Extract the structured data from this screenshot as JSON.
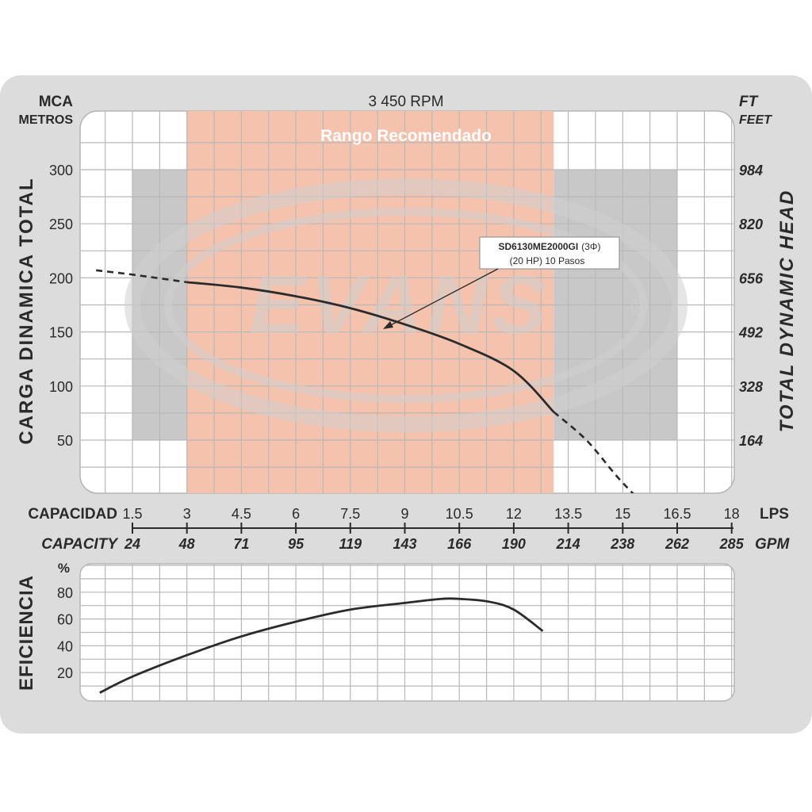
{
  "header": {
    "unit_left_1": "MCA",
    "unit_left_2": "METROS",
    "rpm": "3 450 RPM",
    "unit_right_1": "FT",
    "unit_right_2": "FEET",
    "range_label": "Rango Recomendado"
  },
  "axis_titles": {
    "left": "CARGA DINAMICA TOTAL",
    "right": "TOTAL DYNAMIC HEAD",
    "capacity_es": "CAPACIDAD",
    "capacity_en": "CAPACITY",
    "lps": "LPS",
    "gpm": "GPM",
    "efficiency": "EFICIENCIA",
    "percent": "%"
  },
  "watermark": {
    "text": "EVANS",
    "registered": "®"
  },
  "annotation": {
    "model": "SD6130ME2000GI",
    "phase": "(3Φ)",
    "line2": "(20 HP) 10 Pasos"
  },
  "colors": {
    "page_bg": "#dcdcdc",
    "grid_bg": "#ffffff",
    "grid_line": "#b8b8b8",
    "recommended": "#f5c2ad",
    "gray_zone": "#c8c8c8",
    "curve": "#2b2b2b",
    "watermark": "#cfcfcf"
  },
  "chart_data": [
    {
      "type": "line",
      "title": "3 450 RPM",
      "xlabel": "CAPACIDAD",
      "ylabel": "CARGA DINAMICA TOTAL",
      "x_unit": "LPS",
      "y_unit": "MCA",
      "xlim": [
        0.5,
        18
      ],
      "ylim": [
        0,
        340
      ],
      "x_ticks": [
        1.5,
        3,
        4.5,
        6,
        7.5,
        9,
        10.5,
        12,
        13.5,
        15,
        16.5,
        18
      ],
      "x_tick_labels": [
        "1.5",
        "3",
        "4.5",
        "6",
        "7.5",
        "9",
        "10.5",
        "12",
        "13.5",
        "15",
        "16.5",
        "18"
      ],
      "gpm_tick_labels": [
        "24",
        "48",
        "71",
        "95",
        "119",
        "143",
        "166",
        "190",
        "214",
        "238",
        "262",
        "285"
      ],
      "y_ticks": [
        50,
        100,
        150,
        200,
        250,
        300
      ],
      "y_tick_labels": [
        "50",
        "100",
        "150",
        "200",
        "250",
        "300"
      ],
      "y2_tick_labels": [
        "164",
        "328",
        "492",
        "656",
        "820",
        "984"
      ],
      "recommended_range": [
        3,
        13.1
      ],
      "gray_bands": [
        {
          "x": [
            1.5,
            3
          ],
          "y": [
            50,
            300
          ]
        },
        {
          "x": [
            13.1,
            16.5
          ],
          "y": [
            50,
            300
          ]
        }
      ],
      "grid": true,
      "series": [
        {
          "name": "SD6130ME2000GI",
          "solid": [
            [
              3.0,
              196
            ],
            [
              4.5,
              191
            ],
            [
              6.0,
              183
            ],
            [
              7.5,
              172
            ],
            [
              9.0,
              157
            ],
            [
              10.5,
              139
            ],
            [
              12.0,
              114
            ],
            [
              13.1,
              76
            ]
          ],
          "dashed_left": [
            [
              0.5,
              207
            ],
            [
              1.5,
              203
            ],
            [
              3.0,
              196
            ]
          ],
          "dashed_right": [
            [
              13.1,
              76
            ],
            [
              14.0,
              50
            ],
            [
              14.8,
              18
            ],
            [
              15.3,
              0
            ]
          ]
        }
      ]
    },
    {
      "type": "line",
      "xlabel": "CAPACIDAD",
      "ylabel": "EFICIENCIA",
      "y_unit": "%",
      "xlim": [
        0.5,
        18
      ],
      "ylim": [
        0,
        97
      ],
      "y_ticks": [
        20,
        40,
        60,
        80
      ],
      "y_tick_labels": [
        "20",
        "40",
        "60",
        "80"
      ],
      "grid": true,
      "series": [
        {
          "name": "EFICIENCIA",
          "values": [
            [
              0.6,
              5
            ],
            [
              1.5,
              17
            ],
            [
              3.0,
              33
            ],
            [
              4.5,
              47
            ],
            [
              6.0,
              58
            ],
            [
              7.5,
              67
            ],
            [
              9.0,
              72
            ],
            [
              10.0,
              75
            ],
            [
              10.5,
              75
            ],
            [
              11.3,
              73
            ],
            [
              12.0,
              67
            ],
            [
              12.8,
              51
            ]
          ]
        }
      ]
    }
  ]
}
